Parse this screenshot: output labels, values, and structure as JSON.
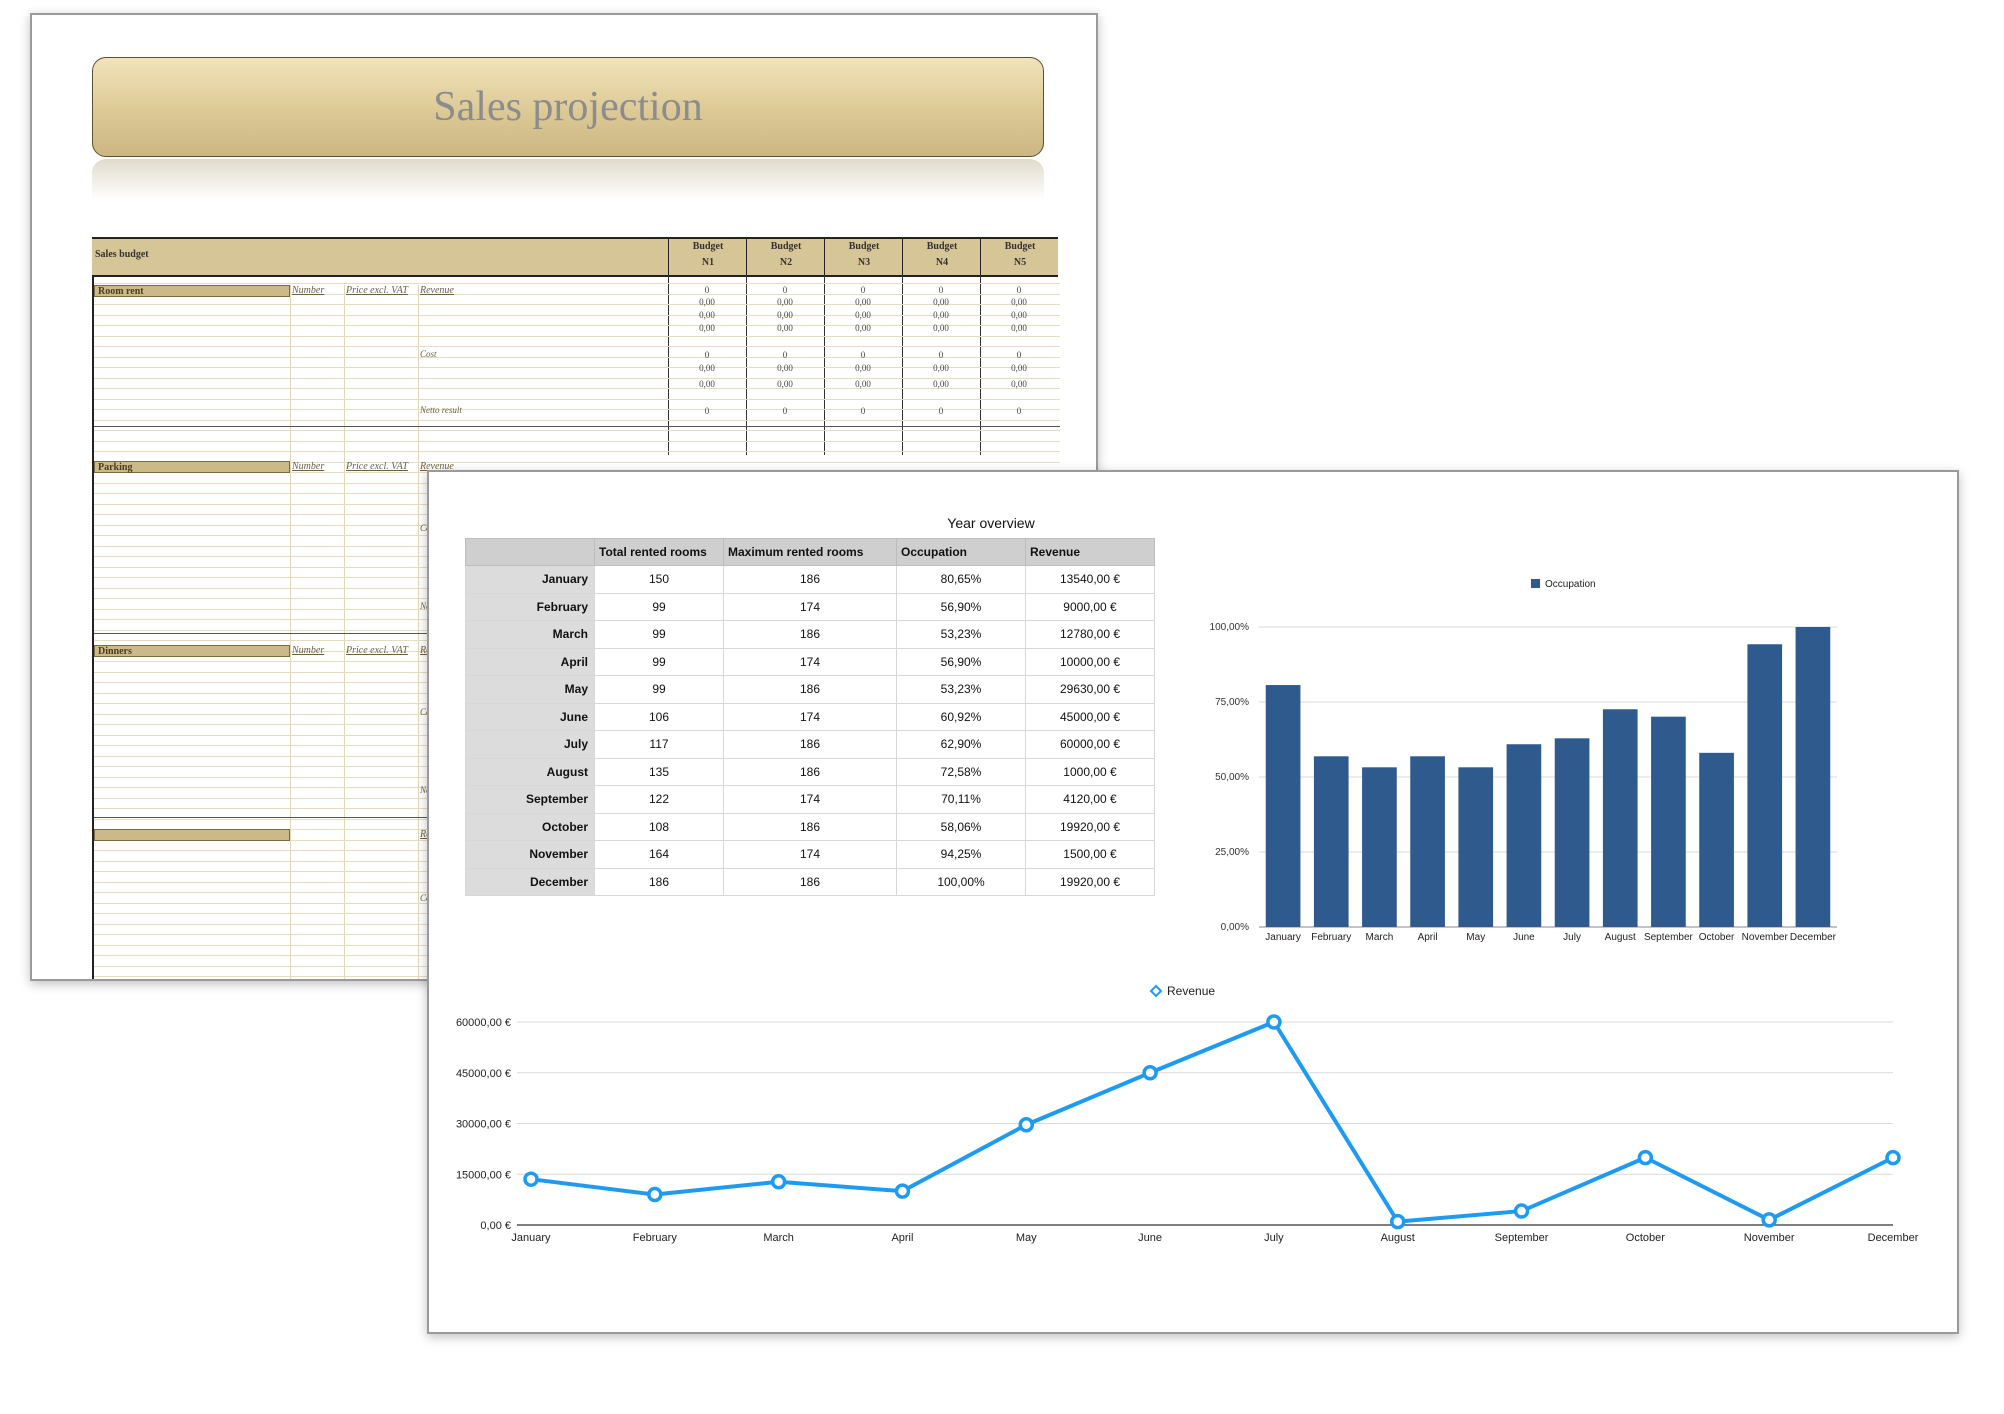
{
  "back_sheet": {
    "title": "Sales projection",
    "table_header": "Sales budget",
    "budget_columns": [
      {
        "line1": "Budget",
        "line2": "N1"
      },
      {
        "line1": "Budget",
        "line2": "N2"
      },
      {
        "line1": "Budget",
        "line2": "N3"
      },
      {
        "line1": "Budget",
        "line2": "N4"
      },
      {
        "line1": "Budget",
        "line2": "N5"
      }
    ],
    "sections": [
      "Room rent",
      "Parking",
      "Dinners",
      ""
    ],
    "column_captions": {
      "number": "Number",
      "price": "Price excl. VAT",
      "revenue": "Revenue"
    },
    "row_captions": {
      "cost": "Cost",
      "netto": "Netto result"
    },
    "zero_int": "0",
    "zero_dec": "0,00"
  },
  "front_sheet": {
    "table_title": "Year overview",
    "headers": [
      "",
      "Total rented rooms",
      "Maximum rented rooms",
      "Occupation",
      "Revenue"
    ],
    "rows": [
      [
        "January",
        "150",
        "186",
        "80,65%",
        "13540,00 €"
      ],
      [
        "February",
        "99",
        "174",
        "56,90%",
        "9000,00 €"
      ],
      [
        "March",
        "99",
        "186",
        "53,23%",
        "12780,00 €"
      ],
      [
        "April",
        "99",
        "174",
        "56,90%",
        "10000,00 €"
      ],
      [
        "May",
        "99",
        "186",
        "53,23%",
        "29630,00 €"
      ],
      [
        "June",
        "106",
        "174",
        "60,92%",
        "45000,00 €"
      ],
      [
        "July",
        "117",
        "186",
        "62,90%",
        "60000,00 €"
      ],
      [
        "August",
        "135",
        "186",
        "72,58%",
        "1000,00 €"
      ],
      [
        "September",
        "122",
        "174",
        "70,11%",
        "4120,00 €"
      ],
      [
        "October",
        "108",
        "186",
        "58,06%",
        "19920,00 €"
      ],
      [
        "November",
        "164",
        "174",
        "94,25%",
        "1500,00 €"
      ],
      [
        "December",
        "186",
        "186",
        "100,00%",
        "19920,00 €"
      ]
    ]
  },
  "colors": {
    "bar": "#2e5a8e",
    "line": "#1e9bf0",
    "banner": "#dcc995"
  },
  "chart_data": [
    {
      "type": "bar",
      "categories": [
        "January",
        "February",
        "March",
        "April",
        "May",
        "June",
        "July",
        "August",
        "September",
        "October",
        "November",
        "December"
      ],
      "series": [
        {
          "name": "Occupation",
          "values": [
            80.65,
            56.9,
            53.23,
            56.9,
            53.23,
            60.92,
            62.9,
            72.58,
            70.11,
            58.06,
            94.25,
            100.0
          ]
        }
      ],
      "yticks": [
        "0,00%",
        "25,00%",
        "50,00%",
        "75,00%",
        "100,00%"
      ],
      "ylim": [
        0,
        100
      ],
      "grid": true,
      "legend": "top-center"
    },
    {
      "type": "line",
      "categories": [
        "January",
        "February",
        "March",
        "April",
        "May",
        "June",
        "July",
        "August",
        "September",
        "October",
        "November",
        "December"
      ],
      "series": [
        {
          "name": "Revenue",
          "values": [
            13540,
            9000,
            12780,
            10000,
            29630,
            45000,
            60000,
            1000,
            4120,
            19920,
            1500,
            19920
          ]
        }
      ],
      "yticks": [
        "0,00 €",
        "15000,00 €",
        "30000,00 €",
        "45000,00 €",
        "60000,00 €"
      ],
      "ylim": [
        0,
        60000
      ],
      "grid": true,
      "legend": "top-center"
    }
  ]
}
